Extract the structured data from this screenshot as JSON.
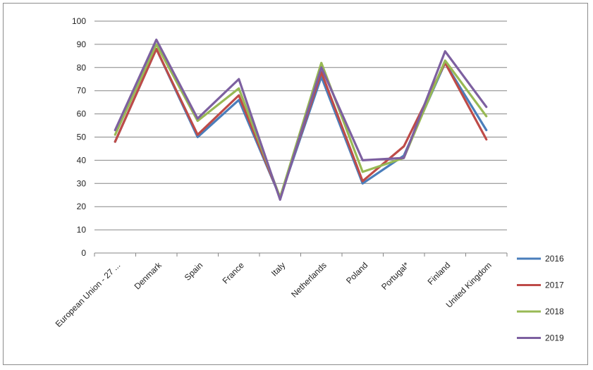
{
  "chart_data": {
    "type": "line",
    "title": "",
    "xlabel": "",
    "ylabel": "",
    "ylim": [
      0,
      100
    ],
    "yticks": [
      0,
      10,
      20,
      30,
      40,
      50,
      60,
      70,
      80,
      90,
      100
    ],
    "grid": true,
    "legend_position": "right",
    "categories": [
      "European Union - 27 ...",
      "Denmark",
      "Spain",
      "France",
      "Italy",
      "Netherlands",
      "Poland",
      "Portugal*",
      "Finland",
      "United Kingdom"
    ],
    "series": [
      {
        "name": "2016",
        "color": "#4a7ebb",
        "values": [
          48,
          88,
          50,
          66,
          24,
          76,
          30,
          42,
          82,
          53
        ]
      },
      {
        "name": "2017",
        "color": "#be4b48",
        "values": [
          48,
          88,
          51,
          68,
          24,
          78,
          31,
          46,
          82,
          49
        ]
      },
      {
        "name": "2018",
        "color": "#98b954",
        "values": [
          51,
          90,
          57,
          71,
          24,
          82,
          35,
          41,
          83,
          59
        ]
      },
      {
        "name": "2019",
        "color": "#7d60a0",
        "values": [
          53,
          92,
          58,
          75,
          23,
          80,
          40,
          41,
          87,
          63
        ]
      }
    ]
  }
}
